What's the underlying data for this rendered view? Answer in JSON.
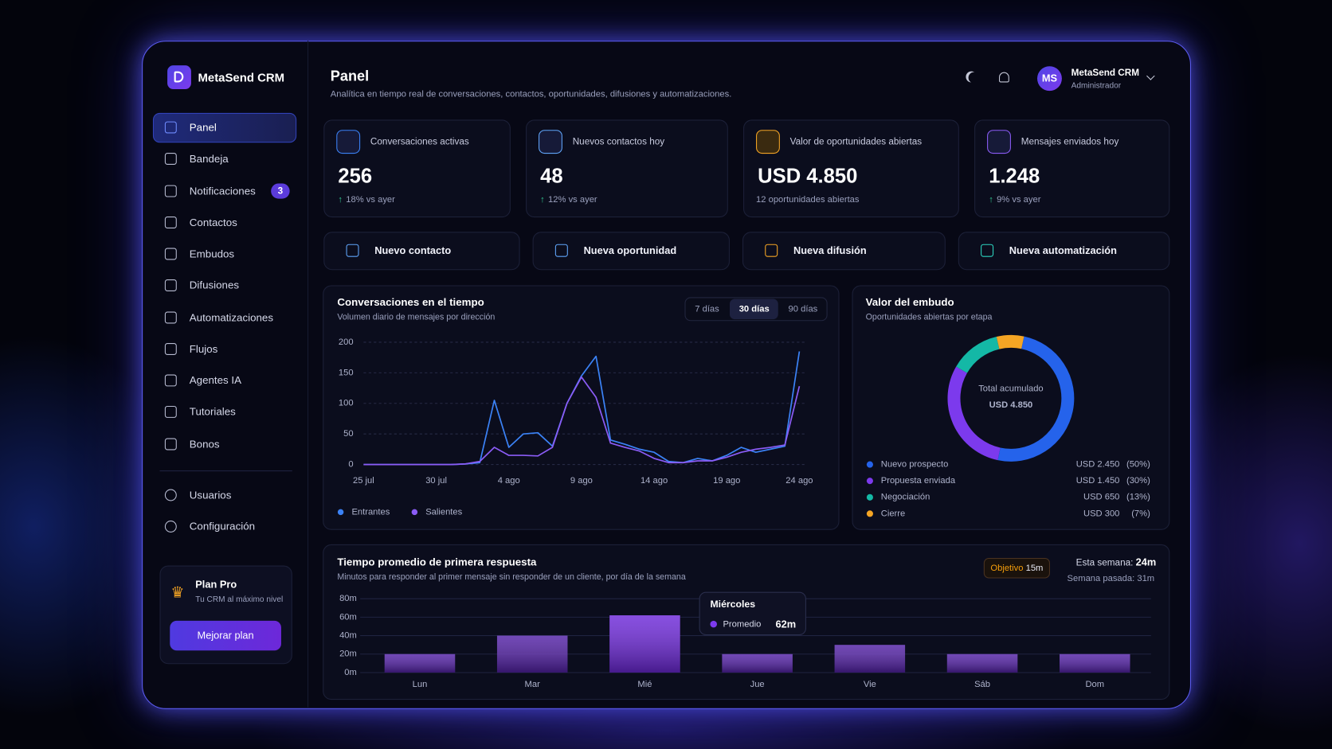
{
  "sidebar": {
    "brand": "MetaSend CRM",
    "nav": [
      "Panel",
      "Bandeja",
      "Notificaciones",
      "Contactos",
      "Embudos",
      "Difusiones",
      "Automatizaciones",
      "Flujos",
      "Agentes IA",
      "Tutoriales",
      "Bonos"
    ],
    "badge": 3,
    "nav_secondary": [
      "Usuarios",
      "Configuración"
    ],
    "plan": {
      "title": "Plan Pro",
      "subtitle": "Tu CRM al máximo nivel",
      "button": "Mejorar plan"
    }
  },
  "header": {
    "title": "Panel",
    "subtitle": "Analítica en tiempo real de conversaciones, contactos, oportunidades, difusiones y automatizaciones.",
    "user": {
      "initials": "MS",
      "name": "MetaSend CRM",
      "role": "Administrador"
    }
  },
  "kpis": [
    {
      "label": "Conversaciones activas",
      "value": "256",
      "delta": "18% vs ayer"
    },
    {
      "label": "Nuevos contactos hoy",
      "value": "48",
      "delta": "12% vs ayer"
    },
    {
      "label": "Valor de oportunidades abiertas",
      "value": "USD 4.850",
      "note": "12 oportunidades abiertas"
    },
    {
      "label": "Mensajes enviados hoy",
      "value": "1.248",
      "delta": "9% vs ayer"
    }
  ],
  "actions": [
    "Nuevo contacto",
    "Nueva oportunidad",
    "Nueva difusión",
    "Nueva automatización"
  ],
  "conversations_chart": {
    "type": "line",
    "title": "Conversaciones en el tiempo",
    "subtitle": "Volumen diario de mensajes por dirección",
    "ranges": [
      "7 días",
      "30 días",
      "90 días"
    ],
    "categories": [
      "25 jul",
      null,
      null,
      null,
      null,
      "30 jul",
      null,
      null,
      null,
      null,
      "4 ago",
      null,
      null,
      null,
      null,
      "9 ago",
      null,
      null,
      null,
      null,
      "14 ago",
      null,
      null,
      null,
      null,
      "19 ago",
      null,
      null,
      null,
      null,
      "24 ago"
    ],
    "series": [
      {
        "name": "Entrantes",
        "color": "#3b82f6",
        "values": [
          0,
          0,
          0,
          0,
          0,
          0,
          0,
          1,
          3,
          105,
          28,
          50,
          52,
          30,
          100,
          145,
          177,
          40,
          33,
          25,
          20,
          5,
          3,
          10,
          6,
          15,
          28,
          20,
          25,
          30,
          185
        ]
      },
      {
        "name": "Salientes",
        "color": "#8b5cf6",
        "values": [
          0,
          0,
          0,
          0,
          0,
          0,
          0,
          1,
          5,
          28,
          15,
          15,
          14,
          28,
          100,
          143,
          110,
          35,
          28,
          22,
          10,
          3,
          3,
          6,
          6,
          12,
          20,
          25,
          28,
          32,
          128
        ]
      }
    ],
    "ylim": [
      0,
      200
    ],
    "yticks": [
      0,
      50,
      100,
      150,
      200
    ],
    "grid": true
  },
  "funnel_chart": {
    "type": "donut",
    "title": "Valor del embudo",
    "subtitle": "Oportunidades abiertas por etapa",
    "center_label": "Total acumulado",
    "center_value": "USD 4.850",
    "categories": [
      "Nuevo prospecto",
      "Propuesta enviada",
      "Negociación",
      "Cierre"
    ],
    "colors": [
      "#2563eb",
      "#7c3aed",
      "#14b8a6",
      "#f5a524"
    ],
    "values": [
      50,
      30,
      13,
      7
    ],
    "value_labels": [
      "(50%)",
      "(30%)",
      "(13%)",
      "(7%)"
    ],
    "amounts": [
      2450,
      1450,
      650,
      300
    ],
    "amount_labels": [
      "USD 2.450",
      "USD 1.450",
      "USD 650",
      "USD 300"
    ]
  },
  "response_chart": {
    "type": "bar",
    "title": "Tiempo promedio de primera respuesta",
    "subtitle": "Minutos para responder al primer mensaje sin responder de un cliente, por día de la semana",
    "target_label": "Objetivo",
    "target": "15m",
    "this_week_label": "Esta semana:",
    "this_week": "24m",
    "last_week_label": "Semana pasada:",
    "last_week": "31m",
    "categories": [
      "Lun",
      "Mar",
      "Mié",
      "Jue",
      "Vie",
      "Sáb",
      "Dom"
    ],
    "values": [
      20,
      40,
      62,
      20,
      30,
      20,
      20
    ],
    "value_labels": [
      null,
      null,
      "62m",
      null,
      null,
      null,
      null
    ],
    "color": "#6d28d9",
    "ylim": [
      0,
      80
    ],
    "yticks": [
      {
        "value": 0,
        "label": "0m"
      },
      {
        "value": 20,
        "label": "20m"
      },
      {
        "value": 40,
        "label": "40m"
      },
      {
        "value": 60,
        "label": "60m"
      },
      {
        "value": 80,
        "label": "80m"
      }
    ],
    "grid": true,
    "tooltip": {
      "title": "Miércoles",
      "series": "Promedio"
    }
  }
}
